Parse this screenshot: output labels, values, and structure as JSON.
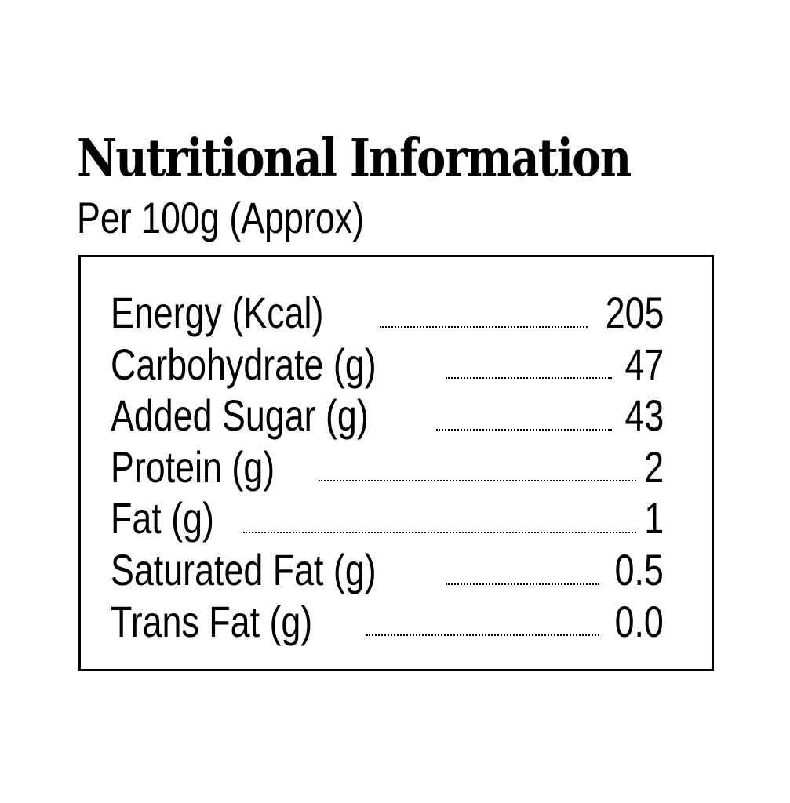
{
  "header": {
    "title": "Nutritional Information",
    "subtitle": "Per 100g (Approx)"
  },
  "nutrients": [
    {
      "label": "Energy (Kcal)",
      "value": "205"
    },
    {
      "label": "Carbohydrate (g)",
      "value": "47"
    },
    {
      "label": "Added Sugar (g)",
      "value": "43"
    },
    {
      "label": "Protein (g)",
      "value": "2"
    },
    {
      "label": "Fat (g)",
      "value": "1"
    },
    {
      "label": "Saturated Fat (g)",
      "value": "0.5"
    },
    {
      "label": "Trans Fat (g)",
      "value": "0.0"
    }
  ]
}
